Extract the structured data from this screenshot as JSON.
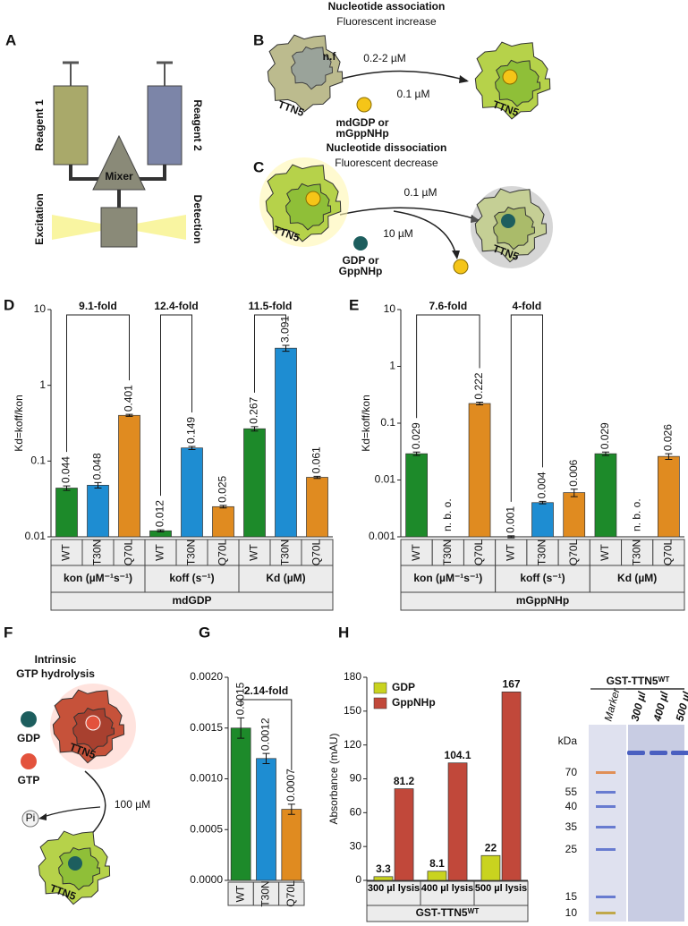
{
  "panel_labels": [
    "A",
    "B",
    "C",
    "D",
    "E",
    "F",
    "G",
    "H"
  ],
  "scheme_a": {
    "reagent_1": "Reagent 1",
    "reagent_2": "Reagent 2",
    "mixer": "Mixer",
    "excitation": "Excitation",
    "detection": "Detection"
  },
  "scheme_b": {
    "title": "Nucleotide association",
    "subtitle": "Fluorescent increase",
    "nf": "n.f",
    "protein": "TTN5",
    "protein_conc": "0.2-2 µM",
    "nucleotide_conc": "0.1 µM",
    "nucleotide": [
      "mdGDP or",
      "mGppNHp"
    ]
  },
  "scheme_c": {
    "title": "Nucleotide dissociation",
    "subtitle": "Fluorescent decrease",
    "protein": "TTN5",
    "complex_conc": "0.1 µM",
    "nucleotide_conc": "10 µM",
    "nucleotide": [
      "GDP or",
      "GppNHp"
    ]
  },
  "scheme_f": {
    "title": [
      "Intrinsic",
      "GTP hydrolysis"
    ],
    "gdp": "GDP",
    "gtp": "GTP",
    "protein": "TTN5",
    "conc": "100 µM",
    "pi": "Pi"
  },
  "gel": {
    "title": "GST-TTN5ᵂᵀ",
    "lanes": [
      "Marker",
      "300 µl",
      "400 µl",
      "500 µl"
    ],
    "unit": "kDa",
    "markers": [
      "70",
      "55",
      "40",
      "35",
      "25",
      "15",
      "10"
    ]
  },
  "chart_data": [
    {
      "type": "bar",
      "ylabel": "Kd=koff/kon",
      "log_scale": true,
      "ylim": [
        0.01,
        10
      ],
      "yticks": [
        0.01,
        0.1,
        1,
        10
      ],
      "categories": [
        "WT",
        "T30N",
        "Q70L",
        "WT",
        "T30N",
        "Q70L",
        "WT",
        "T30N",
        "Q70L"
      ],
      "values": [
        0.044,
        0.048,
        0.401,
        0.012,
        0.149,
        0.025,
        0.267,
        3.091,
        0.061
      ],
      "errors": [
        0.003,
        0.004,
        0.012,
        0.0004,
        0.007,
        0.001,
        0.018,
        0.28,
        0.002
      ],
      "colors": [
        "#1d8a2a",
        "#1e8dd2",
        "#e08b20",
        "#1d8a2a",
        "#1e8dd2",
        "#e08b20",
        "#1d8a2a",
        "#1e8dd2",
        "#e08b20"
      ],
      "groups": [
        "kon (µM⁻¹s⁻¹)",
        "koff (s⁻¹)",
        "Kd (µM)"
      ],
      "group_title": "mdGDP",
      "brackets": [
        {
          "label": "9.1-fold",
          "from": 0,
          "to": 2
        },
        {
          "label": "12.4-fold",
          "from": 3,
          "to": 4
        },
        {
          "label": "11.5-fold",
          "from": 6,
          "to": 7
        }
      ]
    },
    {
      "type": "bar",
      "ylabel": "Kd=koff/kon",
      "log_scale": true,
      "ylim": [
        0.001,
        10
      ],
      "yticks": [
        0.001,
        0.01,
        0.1,
        1,
        10
      ],
      "categories": [
        "WT",
        "T30N",
        "Q70L",
        "WT",
        "T30N",
        "Q70L",
        "WT",
        "T30N",
        "Q70L"
      ],
      "values": [
        0.029,
        null,
        0.222,
        0.001,
        0.004,
        0.006,
        0.029,
        null,
        0.026
      ],
      "value_labels": [
        "0.029",
        "n. b. o.",
        "0.222",
        "0.001",
        "0.004",
        "0.006",
        "0.029",
        "n. b. o.",
        "0.026"
      ],
      "errors": [
        0.002,
        null,
        0.012,
        4e-05,
        0.0002,
        0.0009,
        0.002,
        null,
        0.003
      ],
      "colors": [
        "#1d8a2a",
        "#1e8dd2",
        "#e08b20",
        "#1d8a2a",
        "#1e8dd2",
        "#e08b20",
        "#1d8a2a",
        "#1e8dd2",
        "#e08b20"
      ],
      "groups": [
        "kon (µM⁻¹s⁻¹)",
        "koff (s⁻¹)",
        "Kd (µM)"
      ],
      "group_title": "mGppNHp",
      "brackets": [
        {
          "label": "7.6-fold",
          "from": 0,
          "to": 2
        },
        {
          "label": "4-fold",
          "from": 3,
          "to": 4
        }
      ]
    },
    {
      "type": "bar",
      "ylim": [
        0,
        0.002
      ],
      "yticks": [
        {
          "value": 0,
          "label": "0.0000"
        },
        0.0005,
        {
          "value": 0.001,
          "label": "0.0010"
        },
        0.0015,
        {
          "value": 0.002,
          "label": "0.0020"
        }
      ],
      "categories": [
        "WT",
        "T30N",
        "Q70L"
      ],
      "values": [
        0.0015,
        0.0012,
        0.0007
      ],
      "errors": [
        0.0001,
        5e-05,
        5e-05
      ],
      "colors": [
        "#1d8a2a",
        "#1e8dd2",
        "#e08b20"
      ],
      "brackets": [
        {
          "label": "2.14-fold",
          "from": 0,
          "to": 2
        }
      ]
    },
    {
      "type": "bar",
      "ylabel": "Absorbance (mAU)",
      "ylim": [
        0,
        180
      ],
      "yticks": [
        0,
        30,
        60,
        90,
        120,
        150,
        180
      ],
      "categories": [
        "300 µl lysis",
        "400 µl lysis",
        "500 µl lysis"
      ],
      "legend": "upper left",
      "series": [
        {
          "name": "GDP",
          "color": "#c9d31f",
          "values": [
            3.3,
            8.1,
            22
          ]
        },
        {
          "name": "GppNHp",
          "color": "#c1483a",
          "values": [
            81.2,
            104.1,
            167
          ]
        }
      ],
      "group_title": "GST-TTN5ᵂᵀ"
    }
  ]
}
